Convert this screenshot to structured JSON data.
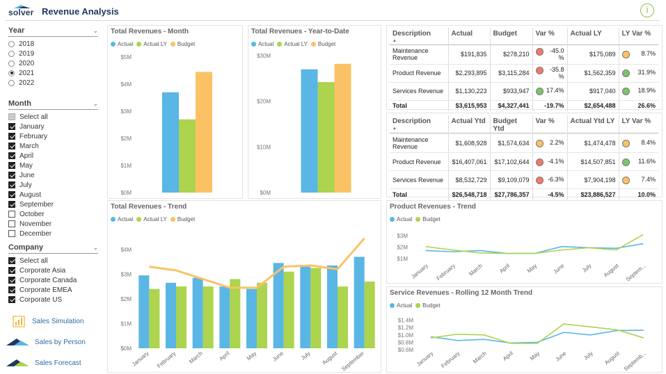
{
  "app": {
    "logo_text": "solver",
    "title": "Revenue Analysis"
  },
  "colors": {
    "actual": "#5ab6e4",
    "actual_ly": "#acd44e",
    "budget": "#fbc265",
    "red": "#f07a6a",
    "green": "#7cc46c",
    "amber": "#fbc265"
  },
  "slicers": {
    "year": {
      "title": "Year",
      "items": [
        {
          "label": "2018",
          "selected": false
        },
        {
          "label": "2019",
          "selected": false
        },
        {
          "label": "2020",
          "selected": false
        },
        {
          "label": "2021",
          "selected": true
        },
        {
          "label": "2022",
          "selected": false
        }
      ]
    },
    "month": {
      "title": "Month",
      "items": [
        {
          "label": "Select all",
          "state": "partial"
        },
        {
          "label": "January",
          "state": "on"
        },
        {
          "label": "February",
          "state": "on"
        },
        {
          "label": "March",
          "state": "on"
        },
        {
          "label": "April",
          "state": "on"
        },
        {
          "label": "May",
          "state": "on"
        },
        {
          "label": "June",
          "state": "on"
        },
        {
          "label": "July",
          "state": "on"
        },
        {
          "label": "August",
          "state": "on"
        },
        {
          "label": "September",
          "state": "on"
        },
        {
          "label": "October",
          "state": "off"
        },
        {
          "label": "November",
          "state": "off"
        },
        {
          "label": "December",
          "state": "off"
        }
      ]
    },
    "company": {
      "title": "Company",
      "items": [
        {
          "label": "Select all",
          "state": "on"
        },
        {
          "label": "Corporate Asia",
          "state": "on"
        },
        {
          "label": "Corporate Canada",
          "state": "on"
        },
        {
          "label": "Corporate EMEA",
          "state": "on"
        },
        {
          "label": "Corporate US",
          "state": "on"
        }
      ]
    }
  },
  "nav": {
    "simulation": "Sales Simulation",
    "by_person": "Sales by Person",
    "forecast": "Sales Forecast"
  },
  "legend": {
    "actual": "Actual",
    "actual_ly": "Actual LY",
    "budget": "Budget"
  },
  "panels": {
    "month": "Total Revenues - Month",
    "ytd": "Total Revenues - Year-to-Date",
    "trend": "Total Revenues - Trend",
    "product": "Product Revenues - Trend",
    "service": "Service Revenues - Rolling 12 Month Trend"
  },
  "table1": {
    "headers": [
      "Description",
      "Actual",
      "Budget",
      "Var %",
      "Actual LY",
      "LY Var %"
    ],
    "rows": [
      {
        "desc": "Maintenance Revenue",
        "actual": "$191,835",
        "budget": "$278,210",
        "var_status": "red",
        "var": "-45.0 %",
        "ly": "$175,089",
        "lyvar_status": "amber",
        "lyvar": "8.7%"
      },
      {
        "desc": "Product Revenue",
        "actual": "$2,293,895",
        "budget": "$3,115,284",
        "var_status": "red",
        "var": "-35.8 %",
        "ly": "$1,562,359",
        "lyvar_status": "green",
        "lyvar": "31.9%"
      },
      {
        "desc": "Services Revenue",
        "actual": "$1,130,223",
        "budget": "$933,947",
        "var_status": "green",
        "var": "17.4%",
        "ly": "$917,040",
        "lyvar_status": "green",
        "lyvar": "18.9%"
      }
    ],
    "total": {
      "desc": "Total",
      "actual": "$3,615,953",
      "budget": "$4,327,441",
      "var": "-19.7%",
      "ly": "$2,654,488",
      "lyvar": "26.6%"
    }
  },
  "table2": {
    "headers": [
      "Description",
      "Actual Ytd",
      "Budget Ytd",
      "Var %",
      "Actual Ytd LY",
      "LY Var %"
    ],
    "rows": [
      {
        "desc": "Maintenance Revenue",
        "actual": "$1,608,928",
        "budget": "$1,574,634",
        "var_status": "amber",
        "var": "2.2%",
        "ly": "$1,474,478",
        "lyvar_status": "amber",
        "lyvar": "8.4%"
      },
      {
        "desc": "Product Revenue",
        "actual": "$16,407,061",
        "budget": "$17,102,644",
        "var_status": "red",
        "var": "-4.1%",
        "ly": "$14,507,851",
        "lyvar_status": "green",
        "lyvar": "11.6%"
      },
      {
        "desc": "Services Revenue",
        "actual": "$8,532,729",
        "budget": "$9,109,079",
        "var_status": "red",
        "var": "-6.3%",
        "ly": "$7,904,198",
        "lyvar_status": "amber",
        "lyvar": "7.4%"
      }
    ],
    "total": {
      "desc": "Total",
      "actual": "$26,548,718",
      "budget": "$27,786,357",
      "var": "-4.5%",
      "ly": "$23,886,527",
      "lyvar": "10.0%"
    }
  },
  "chart_data": [
    {
      "id": "month",
      "type": "bar",
      "title": "Total Revenues - Month",
      "categories": [
        ""
      ],
      "series": [
        {
          "name": "Actual",
          "values": [
            3.7
          ]
        },
        {
          "name": "Actual LY",
          "values": [
            2.7
          ]
        },
        {
          "name": "Budget",
          "values": [
            4.45
          ]
        }
      ],
      "y_ticks": [
        "$0M",
        "$1M",
        "$2M",
        "$3M",
        "$4M",
        "$5M"
      ],
      "ylim": [
        0,
        5
      ],
      "legend": "top-left",
      "grid": false
    },
    {
      "id": "ytd",
      "type": "bar",
      "title": "Total Revenues - Year-to-Date",
      "categories": [
        ""
      ],
      "series": [
        {
          "name": "Actual",
          "values": [
            27.0
          ]
        },
        {
          "name": "Actual LY",
          "values": [
            24.2
          ]
        },
        {
          "name": "Budget",
          "values": [
            28.2
          ]
        }
      ],
      "y_ticks": [
        "$0M",
        "$10M",
        "$20M",
        "$30M"
      ],
      "ylim": [
        0,
        30
      ],
      "legend": "top-left",
      "grid": false
    },
    {
      "id": "trend",
      "type": "bar",
      "title": "Total Revenues - Trend",
      "categories": [
        "January",
        "February",
        "March",
        "April",
        "May",
        "June",
        "July",
        "August",
        "September"
      ],
      "series": [
        {
          "name": "Actual",
          "kind": "bar",
          "values": [
            2.95,
            2.65,
            2.85,
            2.5,
            2.4,
            3.45,
            3.3,
            3.35,
            3.7
          ]
        },
        {
          "name": "Actual LY",
          "kind": "bar",
          "values": [
            2.4,
            2.5,
            2.5,
            2.8,
            2.65,
            3.1,
            3.25,
            2.5,
            2.7
          ]
        },
        {
          "name": "Budget",
          "kind": "line",
          "values": [
            3.3,
            3.15,
            2.8,
            2.45,
            2.45,
            3.3,
            3.35,
            3.2,
            4.45
          ]
        }
      ],
      "y_ticks": [
        "$0M",
        "$1M",
        "$2M",
        "$3M",
        "$4M"
      ],
      "ylim": [
        0,
        4.5
      ],
      "legend": "top-left",
      "grid": false
    },
    {
      "id": "product",
      "type": "line",
      "title": "Product Revenues - Trend",
      "categories": [
        "January",
        "February",
        "March",
        "April",
        "May",
        "June",
        "July",
        "August",
        "Septem..."
      ],
      "series": [
        {
          "name": "Actual",
          "values": [
            1.7,
            1.6,
            1.7,
            1.45,
            1.45,
            2.05,
            1.95,
            1.9,
            2.3
          ]
        },
        {
          "name": "Budget",
          "values": [
            2.05,
            1.75,
            1.5,
            1.45,
            1.45,
            1.75,
            1.95,
            1.75,
            3.1
          ]
        }
      ],
      "y_ticks": [
        "$1M",
        "$2M",
        "$3M"
      ],
      "ylim": [
        0.7,
        3.3
      ],
      "legend": "top-left",
      "grid": false
    },
    {
      "id": "service",
      "type": "line",
      "title": "Service Revenues - Rolling 12 Month Trend",
      "categories": [
        "January",
        "February",
        "March",
        "April",
        "May",
        "June",
        "July",
        "August",
        "Septemb..."
      ],
      "series": [
        {
          "name": "Actual",
          "values": [
            0.95,
            0.85,
            0.88,
            0.78,
            0.8,
            1.07,
            1.0,
            1.12,
            1.13
          ]
        },
        {
          "name": "Budget",
          "values": [
            0.92,
            1.02,
            1.0,
            0.77,
            0.77,
            1.3,
            1.22,
            1.14,
            0.92
          ]
        }
      ],
      "y_ticks": [
        "$0.6M",
        "$0.8M",
        "$1.0M",
        "$1.2M",
        "$1.4M"
      ],
      "ylim": [
        0.6,
        1.45
      ],
      "legend": "top-left",
      "grid": false
    }
  ]
}
